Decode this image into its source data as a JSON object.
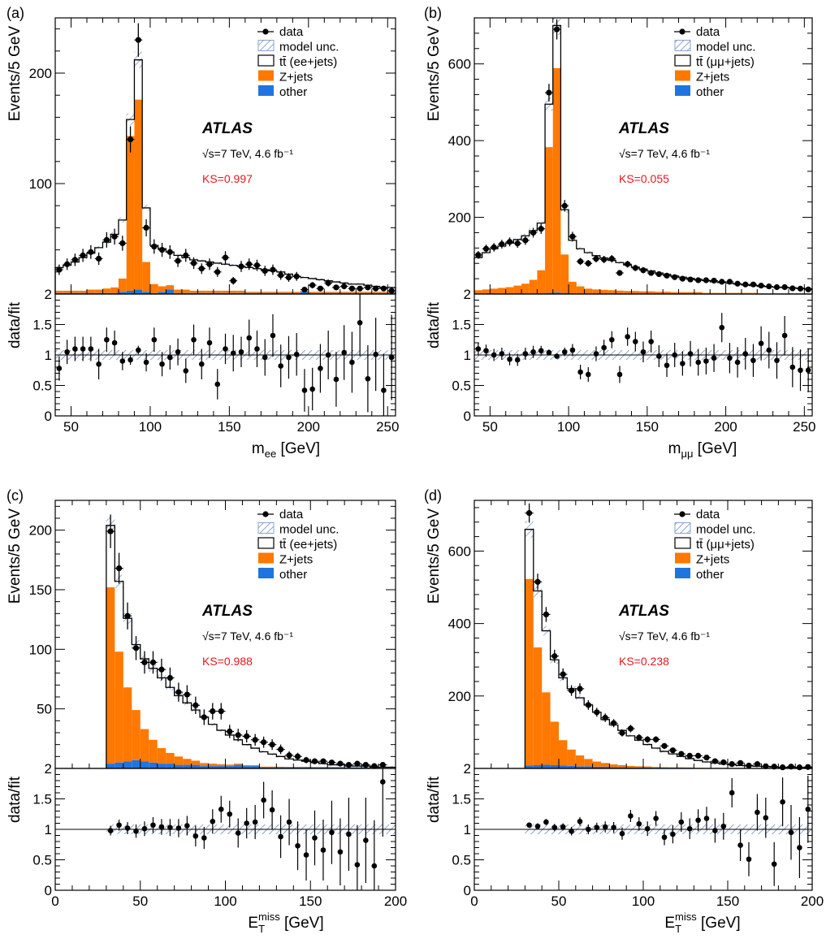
{
  "colors": {
    "zjets": "#ff7800",
    "other": "#1f74e0",
    "hatch": "#6e8fc4",
    "ks": "#e8171b"
  },
  "chart_data": [
    {
      "panel": "(a)",
      "type": "histogram",
      "xlabel": "m_ee [GeV]",
      "ylabel_top": "Events/5 GeV",
      "ylabel_bottom": "data/fit",
      "xlim": [
        40,
        255
      ],
      "ylim": [
        0,
        250
      ],
      "ratio_ylim": [
        0,
        2
      ],
      "xticks": [
        50,
        100,
        150,
        200,
        250
      ],
      "yticks": [
        100,
        200
      ],
      "ratio_yticks": [
        0,
        0.5,
        1,
        1.5,
        2
      ],
      "legend": [
        "data",
        "model unc.",
        "tt̄ (ee+jets)",
        "Z+jets",
        "other"
      ],
      "atlas_label": "ATLAS",
      "energy_text": "√s=7 TeV, 4.6 fb⁻¹",
      "ks_text": "KS=0.997",
      "bin_edges_start": 40,
      "bin_width": 5,
      "total": [
        24,
        26,
        29,
        33,
        37,
        42,
        47,
        54,
        67,
        158,
        212,
        78,
        44,
        41,
        38,
        35,
        33,
        31,
        30,
        29,
        28,
        27,
        26,
        25,
        24,
        23,
        22,
        21,
        20,
        18,
        16,
        15,
        14,
        13,
        12,
        11,
        10,
        9,
        9,
        8,
        7,
        6,
        6
      ],
      "zjets": [
        2,
        2,
        2,
        2,
        3,
        3,
        4,
        5,
        12,
        140,
        172,
        27,
        8,
        5,
        4,
        3,
        3,
        2,
        2,
        2,
        2,
        2,
        2,
        2,
        1,
        1,
        1,
        1,
        1,
        1,
        1,
        1,
        1,
        1,
        1,
        1,
        1,
        1,
        1,
        1,
        1,
        1,
        1
      ],
      "other": [
        1,
        1,
        1,
        1,
        1,
        1,
        1,
        1,
        2,
        3,
        4,
        2,
        1,
        2,
        4,
        1,
        1,
        1,
        1,
        1,
        1,
        1,
        1,
        1,
        1,
        1,
        1,
        1,
        1,
        1,
        1,
        2,
        1,
        1,
        1,
        1,
        1,
        1,
        1,
        1,
        1,
        1,
        1
      ],
      "data_x": [
        42.5,
        47.5,
        52.5,
        57.5,
        62.5,
        67.5,
        72.5,
        77.5,
        82.5,
        87.5,
        92.5,
        97.5,
        102.5,
        107.5,
        112.5,
        117.5,
        122.5,
        127.5,
        132.5,
        137.5,
        142.5,
        147.5,
        152.5,
        157.5,
        162.5,
        167.5,
        172.5,
        177.5,
        182.5,
        187.5,
        192.5,
        197.5,
        202.5,
        207.5,
        212.5,
        217.5,
        222.5,
        227.5,
        232.5,
        237.5,
        242.5,
        247.5,
        252.5
      ],
      "data_y": [
        22,
        27,
        31,
        35,
        38,
        32,
        49,
        52,
        46,
        140,
        230,
        60,
        43,
        40,
        38,
        30,
        35,
        28,
        23,
        27,
        20,
        33,
        12,
        25,
        27,
        26,
        21,
        22,
        17,
        15,
        16,
        4,
        8,
        5,
        10,
        6,
        7,
        5,
        5,
        6,
        5,
        5,
        3
      ],
      "ratio": [
        0.78,
        1.05,
        1.1,
        1.1,
        1.1,
        0.85,
        1.25,
        1.2,
        0.9,
        0.92,
        1.08,
        0.88,
        1.25,
        0.85,
        0.96,
        1.05,
        0.74,
        1.25,
        0.85,
        1.2,
        0.52,
        1.1,
        1.03,
        1.05,
        1.28,
        1.1,
        0.96,
        1.32,
        0.82,
        0.96,
        1.01,
        0.42,
        0.44,
        0.78,
        1.0,
        0.6,
        1.04,
        0.88,
        1.53,
        0.61,
        1.01,
        0.42,
        0.96
      ],
      "ratio_err": [
        0.2,
        0.2,
        0.2,
        0.2,
        0.2,
        0.25,
        0.2,
        0.2,
        0.15,
        0.08,
        0.07,
        0.15,
        0.2,
        0.2,
        0.2,
        0.22,
        0.2,
        0.25,
        0.25,
        0.25,
        0.25,
        0.25,
        0.3,
        0.25,
        0.3,
        0.3,
        0.3,
        0.35,
        0.35,
        0.35,
        0.35,
        0.35,
        0.35,
        0.4,
        0.4,
        0.45,
        0.45,
        0.5,
        0.55,
        0.55,
        0.6,
        0.6,
        0.7
      ]
    },
    {
      "panel": "(b)",
      "type": "histogram",
      "xlabel": "m_μμ [GeV]",
      "ylabel_top": "Events/5 GeV",
      "ylabel_bottom": "data/fit",
      "xlim": [
        40,
        255
      ],
      "ylim": [
        0,
        720
      ],
      "ratio_ylim": [
        0,
        2
      ],
      "xticks": [
        50,
        100,
        150,
        200,
        250
      ],
      "yticks": [
        200,
        400,
        600
      ],
      "ratio_yticks": [
        0,
        0.5,
        1,
        1.5,
        2
      ],
      "legend": [
        "data",
        "model unc.",
        "tt̄ (μμ+jets)",
        "Z+jets",
        "other"
      ],
      "atlas_label": "ATLAS",
      "energy_text": "√s=7 TeV, 4.6 fb⁻¹",
      "ks_text": "KS=0.055",
      "bin_edges_start": 40,
      "bin_width": 5,
      "total": [
        95,
        108,
        118,
        125,
        133,
        142,
        152,
        165,
        185,
        495,
        700,
        220,
        140,
        118,
        108,
        100,
        94,
        88,
        82,
        76,
        70,
        65,
        60,
        55,
        51,
        47,
        44,
        41,
        38,
        35,
        32,
        30,
        28,
        26,
        24,
        22,
        20,
        19,
        18,
        17,
        16,
        15,
        14
      ],
      "zjets": [
        8,
        10,
        12,
        14,
        16,
        20,
        25,
        35,
        60,
        380,
        585,
        100,
        30,
        18,
        12,
        10,
        9,
        8,
        7,
        6,
        6,
        5,
        5,
        4,
        4,
        3,
        3,
        3,
        3,
        2,
        2,
        2,
        2,
        2,
        2,
        2,
        1,
        1,
        1,
        1,
        1,
        1,
        1
      ],
      "other": [
        2,
        2,
        2,
        2,
        2,
        2,
        2,
        2,
        2,
        3,
        4,
        3,
        2,
        2,
        2,
        2,
        2,
        2,
        2,
        2,
        2,
        2,
        2,
        2,
        2,
        2,
        2,
        2,
        2,
        1,
        1,
        1,
        1,
        1,
        1,
        1,
        1,
        1,
        1,
        1,
        1,
        1,
        1
      ],
      "data_x": [
        42.5,
        47.5,
        52.5,
        57.5,
        62.5,
        67.5,
        72.5,
        77.5,
        82.5,
        87.5,
        92.5,
        97.5,
        102.5,
        107.5,
        112.5,
        117.5,
        122.5,
        127.5,
        132.5,
        137.5,
        142.5,
        147.5,
        152.5,
        157.5,
        162.5,
        167.5,
        172.5,
        177.5,
        182.5,
        187.5,
        192.5,
        197.5,
        202.5,
        207.5,
        212.5,
        217.5,
        222.5,
        227.5,
        232.5,
        237.5,
        242.5,
        247.5,
        252.5
      ],
      "data_y": [
        102,
        118,
        122,
        130,
        136,
        132,
        140,
        160,
        170,
        525,
        690,
        230,
        150,
        85,
        80,
        92,
        90,
        92,
        55,
        78,
        68,
        62,
        55,
        52,
        48,
        44,
        40,
        38,
        36,
        36,
        35,
        32,
        32,
        27,
        25,
        25,
        22,
        20,
        18,
        18,
        15,
        14,
        12
      ],
      "ratio": [
        1.1,
        1.07,
        1.0,
        1.02,
        0.93,
        0.92,
        1.02,
        1.05,
        1.07,
        1.04,
        0.98,
        1.05,
        1.08,
        0.72,
        0.68,
        1.02,
        1.12,
        1.25,
        0.68,
        1.3,
        1.22,
        1.05,
        1.22,
        0.98,
        0.83,
        1.0,
        0.86,
        1.02,
        0.88,
        0.9,
        0.95,
        1.45,
        0.95,
        0.88,
        1.02,
        0.91,
        1.19,
        1.08,
        0.91,
        1.32,
        0.8,
        0.75,
        0.75
      ],
      "ratio_err": [
        0.1,
        0.1,
        0.1,
        0.1,
        0.1,
        0.1,
        0.1,
        0.1,
        0.08,
        0.05,
        0.04,
        0.07,
        0.1,
        0.12,
        0.12,
        0.12,
        0.13,
        0.14,
        0.14,
        0.15,
        0.16,
        0.17,
        0.18,
        0.18,
        0.19,
        0.2,
        0.2,
        0.21,
        0.22,
        0.22,
        0.23,
        0.24,
        0.25,
        0.25,
        0.26,
        0.27,
        0.28,
        0.3,
        0.3,
        0.32,
        0.33,
        0.34,
        0.36
      ]
    },
    {
      "panel": "(c)",
      "type": "histogram",
      "xlabel": "E_T^miss [GeV]",
      "ylabel_top": "Events/5 GeV",
      "ylabel_bottom": "data/fit",
      "xlim": [
        0,
        200
      ],
      "ylim": [
        0,
        225
      ],
      "ratio_ylim": [
        0,
        2
      ],
      "xticks": [
        0,
        50,
        100,
        150,
        200
      ],
      "yticks": [
        50,
        100,
        150,
        200
      ],
      "ratio_yticks": [
        0,
        0.5,
        1,
        1.5,
        2
      ],
      "legend": [
        "data",
        "model unc.",
        "tt̄ (ee+jets)",
        "Z+jets",
        "other"
      ],
      "atlas_label": "ATLAS",
      "energy_text": "√s=7 TeV, 4.6 fb⁻¹",
      "ks_text": "KS=0.988",
      "bin_edges_start": 30,
      "bin_width": 5,
      "total": [
        204,
        157,
        126,
        104,
        92,
        84,
        76,
        68,
        61,
        55,
        49,
        43,
        37,
        32,
        28,
        24,
        20,
        17,
        14,
        12,
        10,
        8,
        7,
        6,
        5,
        4,
        3,
        3,
        2,
        2,
        2,
        1,
        1,
        1
      ],
      "zjets": [
        148,
        93,
        62,
        42,
        27,
        19,
        13,
        9,
        7,
        5,
        3.5,
        2.5,
        2,
        1.5,
        1.2,
        1,
        0.8,
        0.7,
        0.5,
        0.5,
        0.4,
        0.3,
        0.3,
        0.3,
        0.2,
        0.2,
        0.2,
        0.2,
        0.1,
        0.1,
        0.1,
        0.1,
        0.1,
        0.1
      ],
      "other": [
        4,
        5,
        6,
        7,
        6,
        5,
        4,
        4,
        3,
        3,
        3,
        2,
        2,
        2,
        2,
        3,
        2,
        2,
        1,
        1,
        1,
        1,
        1,
        1,
        1,
        1,
        1,
        1,
        1,
        1,
        1,
        1,
        1,
        1
      ],
      "data_x": [
        32.5,
        37.5,
        42.5,
        47.5,
        52.5,
        57.5,
        62.5,
        67.5,
        72.5,
        77.5,
        82.5,
        87.5,
        92.5,
        97.5,
        102.5,
        107.5,
        112.5,
        117.5,
        122.5,
        127.5,
        132.5,
        137.5,
        142.5,
        147.5,
        152.5,
        157.5,
        162.5,
        167.5,
        172.5,
        177.5,
        182.5,
        187.5,
        192.5
      ],
      "data_y": [
        199,
        168,
        128,
        101,
        89,
        89,
        83,
        76,
        64,
        62,
        53,
        43,
        48,
        48,
        31,
        28,
        27,
        24,
        22,
        20,
        16,
        11,
        10,
        7,
        6,
        6,
        5,
        4,
        3,
        4,
        3,
        2,
        3
      ],
      "ratio": [
        0.98,
        1.07,
        1.02,
        0.97,
        1.01,
        1.07,
        1.04,
        1.03,
        1.02,
        1.06,
        0.89,
        0.86,
        1.13,
        1.33,
        1.25,
        0.94,
        1.1,
        1.12,
        1.48,
        1.32,
        0.88,
        1.12,
        0.73,
        0.58,
        0.86,
        0.66,
        0.95,
        0.63,
        0.92,
        0.42,
        0.82,
        0.4,
        1.78
      ],
      "ratio_err": [
        0.08,
        0.09,
        0.1,
        0.11,
        0.12,
        0.13,
        0.13,
        0.14,
        0.15,
        0.16,
        0.17,
        0.18,
        0.2,
        0.22,
        0.22,
        0.24,
        0.25,
        0.28,
        0.3,
        0.32,
        0.35,
        0.38,
        0.4,
        0.42,
        0.45,
        0.5,
        0.52,
        0.55,
        0.6,
        0.65,
        0.7,
        0.75,
        0.9
      ]
    },
    {
      "panel": "(d)",
      "type": "histogram",
      "xlabel": "E_T^miss [GeV]",
      "ylabel_top": "Events/5 GeV",
      "ylabel_bottom": "data/fit",
      "xlim": [
        0,
        200
      ],
      "ylim": [
        0,
        740
      ],
      "ratio_ylim": [
        0,
        2
      ],
      "xticks": [
        0,
        50,
        100,
        150,
        200
      ],
      "yticks": [
        200,
        400,
        600
      ],
      "ratio_yticks": [
        0,
        0.5,
        1,
        1.5,
        2
      ],
      "legend": [
        "data",
        "model unc.",
        "tt̄ (μμ+jets)",
        "Z+jets",
        "other"
      ],
      "atlas_label": "ATLAS",
      "energy_text": "√s=7 TeV, 4.6 fb⁻¹",
      "ks_text": "KS=0.238",
      "bin_edges_start": 30,
      "bin_width": 5,
      "total": [
        660,
        490,
        380,
        300,
        250,
        220,
        195,
        175,
        155,
        135,
        120,
        105,
        90,
        78,
        66,
        56,
        47,
        40,
        33,
        27,
        22,
        18,
        15,
        12,
        10,
        8,
        7,
        6,
        5,
        4,
        3,
        3,
        2,
        2
      ],
      "zjets": [
        515,
        325,
        200,
        120,
        70,
        45,
        30,
        20,
        14,
        10,
        7,
        5,
        4,
        3,
        2.5,
        2,
        1.5,
        1.2,
        1,
        0.8,
        0.6,
        0.5,
        0.4,
        0.3,
        0.3,
        0.2,
        0.2,
        0.2,
        0.2,
        0.1,
        0.1,
        0.1,
        0.1,
        0.1
      ],
      "other": [
        8,
        9,
        10,
        9,
        8,
        7,
        6,
        6,
        5,
        5,
        4,
        4,
        3,
        3,
        3,
        2,
        2,
        2,
        2,
        2,
        1,
        1,
        1,
        1,
        1,
        1,
        1,
        1,
        1,
        1,
        1,
        1,
        1,
        1
      ],
      "data_x": [
        32.5,
        37.5,
        42.5,
        47.5,
        52.5,
        57.5,
        62.5,
        67.5,
        72.5,
        77.5,
        82.5,
        87.5,
        92.5,
        97.5,
        102.5,
        107.5,
        112.5,
        117.5,
        122.5,
        127.5,
        132.5,
        137.5,
        142.5,
        147.5,
        152.5,
        157.5,
        162.5,
        167.5,
        172.5,
        177.5,
        182.5,
        187.5,
        192.5,
        197.5
      ],
      "data_y": [
        705,
        515,
        425,
        310,
        260,
        215,
        220,
        175,
        155,
        140,
        125,
        98,
        110,
        85,
        80,
        80,
        62,
        50,
        40,
        35,
        35,
        30,
        20,
        17,
        12,
        15,
        8,
        12,
        6,
        5,
        3,
        5,
        3,
        4
      ],
      "ratio": [
        1.07,
        1.05,
        1.12,
        1.03,
        1.04,
        0.97,
        1.13,
        1.0,
        1.03,
        1.04,
        1.03,
        0.93,
        1.22,
        1.09,
        1.01,
        1.18,
        0.87,
        0.92,
        1.12,
        1.01,
        1.15,
        1.18,
        0.98,
        1.05,
        1.6,
        0.74,
        0.51,
        1.28,
        1.19,
        0.43,
        1.45,
        0.95,
        0.7,
        1.33
      ],
      "ratio_err": [
        0.04,
        0.05,
        0.05,
        0.06,
        0.06,
        0.07,
        0.07,
        0.08,
        0.08,
        0.09,
        0.09,
        0.1,
        0.1,
        0.11,
        0.12,
        0.12,
        0.13,
        0.15,
        0.16,
        0.17,
        0.18,
        0.19,
        0.2,
        0.22,
        0.24,
        0.26,
        0.28,
        0.3,
        0.33,
        0.36,
        0.4,
        0.45,
        0.5,
        0.55
      ]
    }
  ]
}
